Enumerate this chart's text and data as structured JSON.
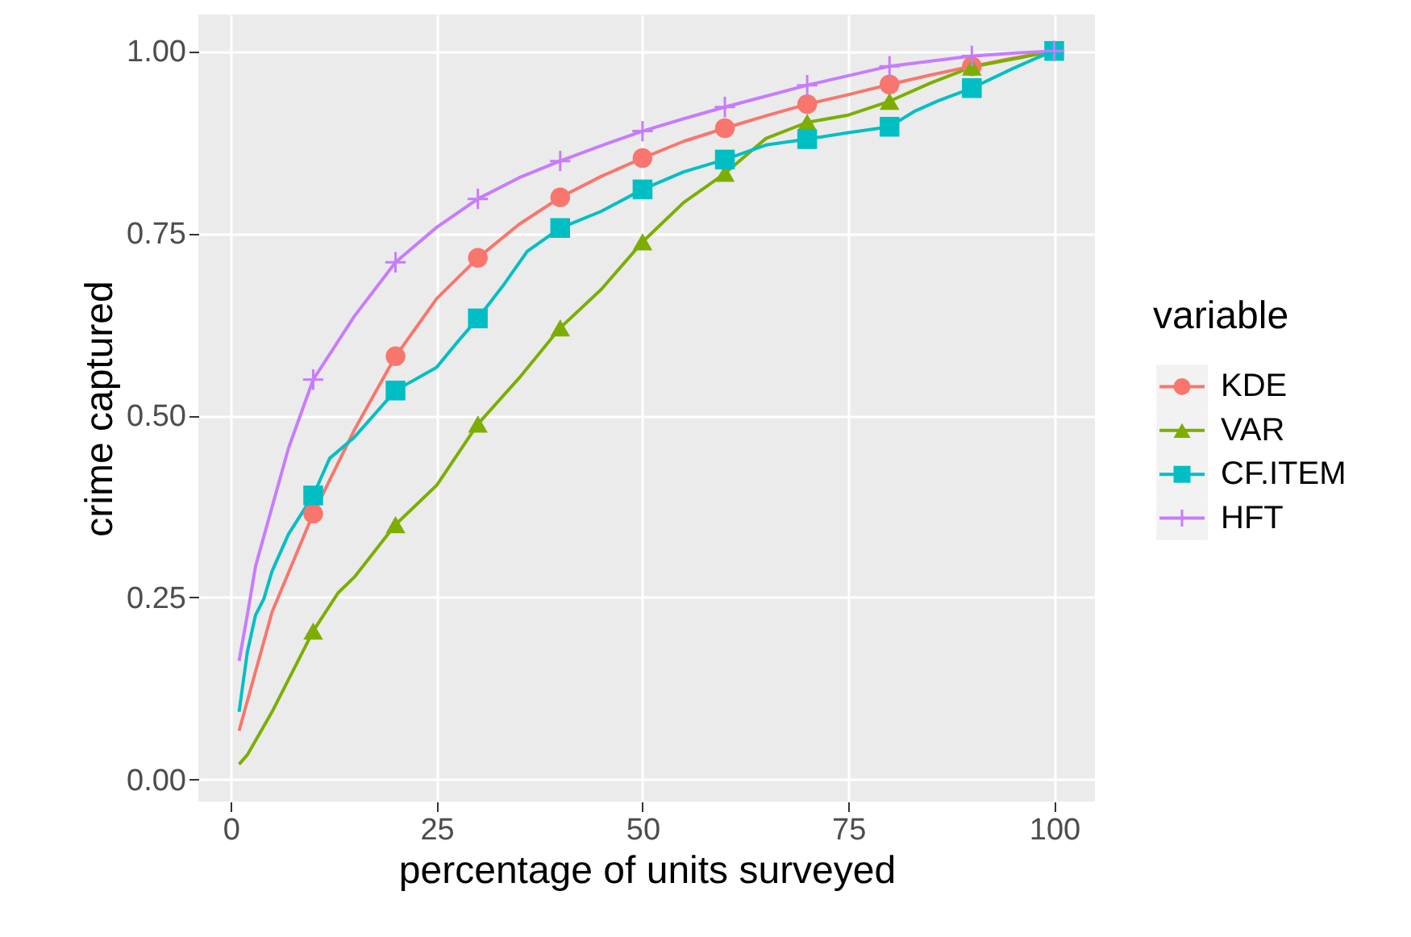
{
  "chart_data": {
    "type": "line",
    "xlabel": "percentage of units surveyed",
    "ylabel": "crime captured",
    "legend_title": "variable",
    "legend": "right",
    "grid": true,
    "xlim": [
      -3.95,
      104.95
    ],
    "ylim": [
      -0.03,
      1.05
    ],
    "xticks": [
      0,
      25,
      50,
      75,
      100
    ],
    "yticks": [
      {
        "value": 0,
        "label": "0.00"
      },
      {
        "value": 0.25,
        "label": "0.25"
      },
      {
        "value": 0.5,
        "label": "0.50"
      },
      {
        "value": 0.75,
        "label": "0.75"
      },
      {
        "value": 1,
        "label": "1.00"
      }
    ],
    "series": [
      {
        "name": "KDE",
        "color": "#f8766d",
        "x": [
          1,
          5,
          10,
          15,
          20,
          25,
          30,
          35,
          40,
          45,
          50,
          55,
          60,
          65,
          70,
          75,
          80,
          85,
          90,
          95,
          100
        ],
        "values": [
          0.067,
          0.23,
          0.365,
          0.48,
          0.581,
          0.66,
          0.716,
          0.762,
          0.799,
          0.828,
          0.853,
          0.876,
          0.894,
          0.911,
          0.927,
          0.94,
          0.954,
          0.967,
          0.979,
          0.99,
          1.0
        ]
      },
      {
        "name": "VAR",
        "color": "#7cae00",
        "x": [
          1,
          2,
          5,
          10,
          13,
          15,
          20,
          25,
          30,
          35,
          40,
          45,
          50,
          55,
          60,
          65,
          70,
          75,
          80,
          85,
          90,
          100
        ],
        "values": [
          0.021,
          0.034,
          0.093,
          0.204,
          0.256,
          0.278,
          0.35,
          0.404,
          0.488,
          0.551,
          0.62,
          0.673,
          0.738,
          0.792,
          0.832,
          0.88,
          0.902,
          0.912,
          0.931,
          0.956,
          0.978,
          1.0
        ]
      },
      {
        "name": "CF.ITEM",
        "color": "#00bfc4",
        "x": [
          1,
          2,
          3,
          4,
          5,
          7,
          10,
          12,
          15,
          20,
          25,
          28,
          30,
          33,
          36,
          40,
          45,
          50,
          55,
          60,
          65,
          70,
          75,
          80,
          83,
          86,
          90,
          95,
          98,
          100
        ],
        "values": [
          0.093,
          0.175,
          0.226,
          0.248,
          0.286,
          0.337,
          0.39,
          0.441,
          0.47,
          0.534,
          0.566,
          0.607,
          0.633,
          0.677,
          0.725,
          0.757,
          0.78,
          0.81,
          0.834,
          0.851,
          0.871,
          0.879,
          0.888,
          0.896,
          0.917,
          0.932,
          0.949,
          0.976,
          0.991,
          1.0
        ]
      },
      {
        "name": "HFT",
        "color": "#c77cff",
        "x": [
          1,
          2,
          3,
          5,
          7,
          10,
          15,
          20,
          25,
          30,
          35,
          40,
          45,
          50,
          55,
          60,
          65,
          70,
          75,
          80,
          85,
          90,
          95,
          100
        ],
        "values": [
          0.163,
          0.226,
          0.293,
          0.374,
          0.455,
          0.549,
          0.636,
          0.71,
          0.758,
          0.797,
          0.826,
          0.849,
          0.87,
          0.89,
          0.907,
          0.923,
          0.938,
          0.953,
          0.966,
          0.979,
          0.986,
          0.993,
          0.997,
          1.0
        ]
      },
      {
        "color": "#f8766d",
        "type": "scatter",
        "marker": "circle",
        "x": [
          10,
          20,
          30,
          40,
          50,
          60,
          70,
          80,
          90
        ],
        "values": [
          0.365,
          0.581,
          0.716,
          0.799,
          0.853,
          0.894,
          0.927,
          0.954,
          0.979
        ]
      },
      {
        "color": "#7cae00",
        "type": "scatter",
        "marker": "triangle",
        "x": [
          10,
          20,
          30,
          40,
          50,
          60,
          70,
          80,
          90
        ],
        "values": [
          0.204,
          0.35,
          0.488,
          0.62,
          0.738,
          0.832,
          0.902,
          0.931,
          0.978
        ]
      },
      {
        "color": "#00bfc4",
        "type": "scatter",
        "marker": "square",
        "x": [
          10,
          20,
          30,
          40,
          50,
          60,
          70,
          80,
          90,
          100
        ],
        "values": [
          0.39,
          0.534,
          0.633,
          0.757,
          0.81,
          0.851,
          0.879,
          0.896,
          0.949,
          1.0
        ]
      },
      {
        "color": "#c77cff",
        "type": "scatter",
        "marker": "cross",
        "x": [
          10,
          20,
          30,
          40,
          50,
          60,
          70,
          80,
          90,
          100
        ],
        "values": [
          0.549,
          0.71,
          0.797,
          0.849,
          0.89,
          0.923,
          0.953,
          0.979,
          0.993,
          1.0
        ]
      }
    ]
  }
}
